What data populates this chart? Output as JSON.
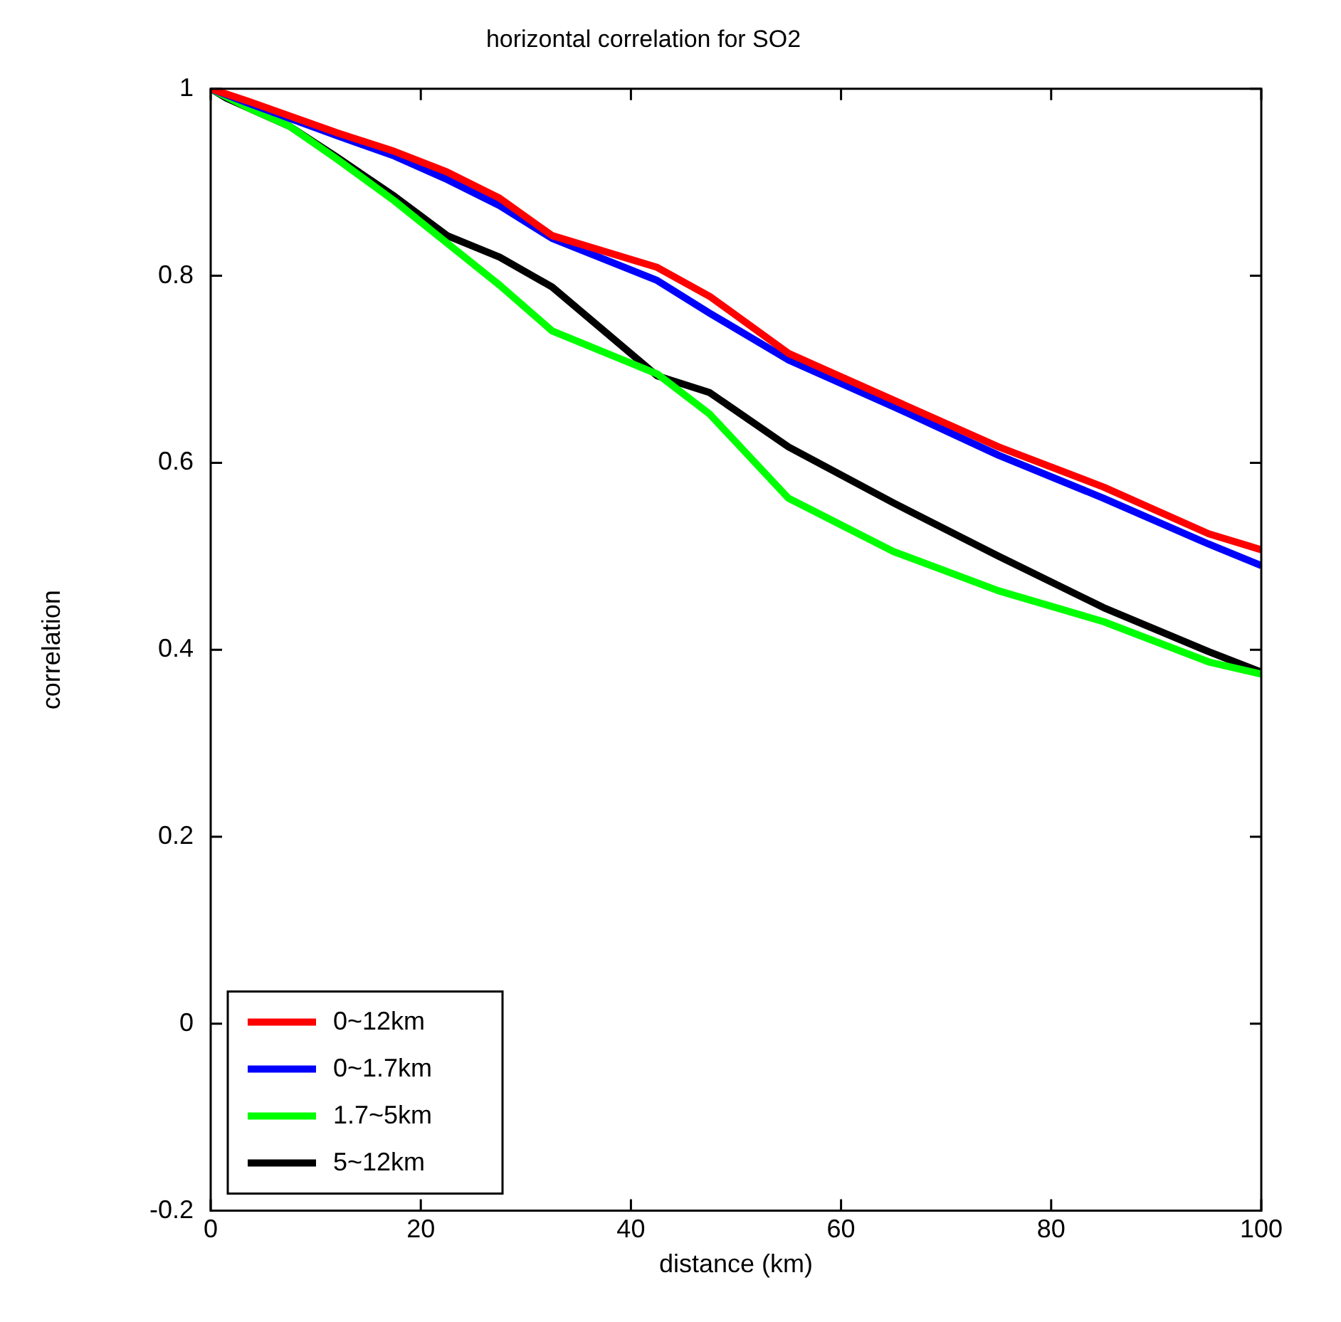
{
  "chart_data": {
    "type": "line",
    "title": "horizontal correlation for SO2",
    "xlabel": "distance (km)",
    "ylabel": "correlation",
    "xlim": [
      0,
      100
    ],
    "xticks": [
      0,
      20,
      40,
      60,
      80,
      100
    ],
    "ylim": [
      -0.2,
      1
    ],
    "yticks": [
      -0.2,
      0,
      0.2,
      0.4,
      0.6,
      0.8,
      1
    ],
    "grid": false,
    "legend": "bottom left",
    "marker": "none",
    "line_style": "solid",
    "series": [
      {
        "name": "0~12km",
        "color": "#ff0000",
        "x": [
          0,
          3.5,
          12,
          17.5,
          22.5,
          27.5,
          32.5,
          42.5,
          47.5,
          55,
          65,
          75,
          85,
          95,
          100
        ],
        "values": [
          1,
          0.987,
          0.953,
          0.933,
          0.911,
          0.883,
          0.843,
          0.809,
          0.778,
          0.717,
          0.667,
          0.617,
          0.574,
          0.524,
          0.507
        ]
      },
      {
        "name": "0~1.7km",
        "color": "#0000ff",
        "x": [
          0,
          3.5,
          12,
          17.5,
          22.5,
          27.5,
          32.5,
          42.5,
          47.5,
          55,
          65,
          75,
          85,
          95,
          100
        ],
        "values": [
          1,
          0.985,
          0.95,
          0.928,
          0.903,
          0.875,
          0.84,
          0.795,
          0.76,
          0.71,
          0.66,
          0.608,
          0.562,
          0.513,
          0.49
        ]
      },
      {
        "name": "1.7~5km",
        "color": "#00ff00",
        "x": [
          0,
          3.5,
          7.5,
          12,
          17.5,
          22.5,
          27.5,
          32.5,
          42.5,
          47.5,
          55,
          65,
          75,
          85,
          95,
          100
        ],
        "values": [
          1,
          0.98,
          0.96,
          0.925,
          0.88,
          0.835,
          0.79,
          0.741,
          0.695,
          0.652,
          0.562,
          0.505,
          0.463,
          0.43,
          0.387,
          0.374
        ]
      },
      {
        "name": "5~12km",
        "color": "#000000",
        "x": [
          0,
          1.5,
          3.5,
          7.5,
          12,
          17.5,
          22.5,
          27.5,
          32.5,
          42.5,
          47.5,
          55,
          65,
          75,
          85,
          95,
          100
        ],
        "values": [
          1,
          0.99,
          0.98,
          0.96,
          0.927,
          0.885,
          0.843,
          0.82,
          0.788,
          0.693,
          0.675,
          0.617,
          0.557,
          0.5,
          0.445,
          0.398,
          0.376
        ]
      }
    ]
  }
}
